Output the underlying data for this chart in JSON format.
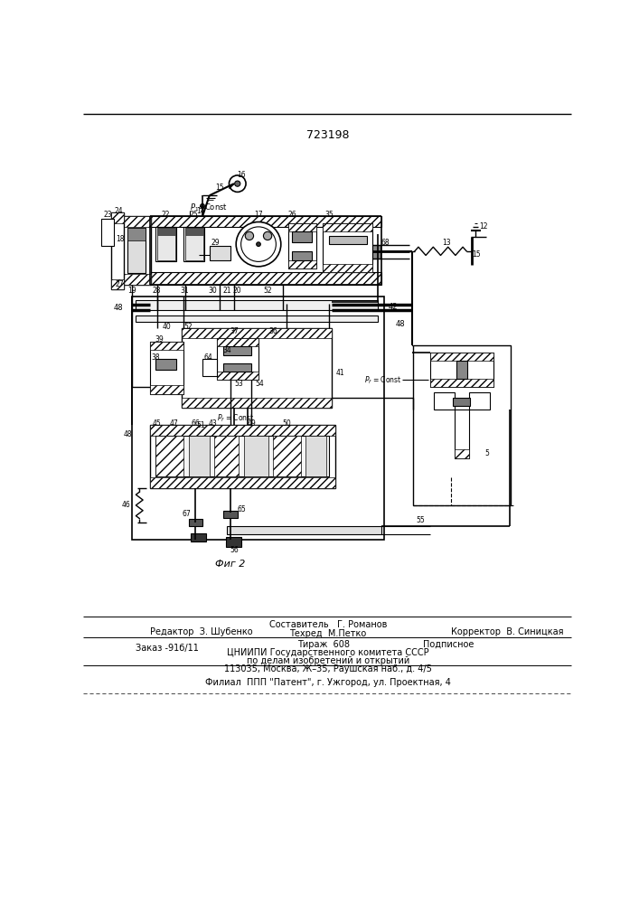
{
  "patent_number": "723198",
  "fig_label": "Фиг 2",
  "background_color": "#ffffff",
  "editor_line": "Редактор  З. Шубенко",
  "composer_line1": "Составитель   Г. Романов",
  "composer_line2": "Техред  М.Петко",
  "corrector_line": "Корректор  В. Синицкая",
  "order_line": "Заказ -91б/11",
  "print_line1": "Тираж  608",
  "print_line1b": "Подписное",
  "print_line2": "ЦНИИПИ Государственного комитета СССР",
  "print_line3": "по делам изобретений и открытий",
  "print_line4": "113035, Москва, Ж–35, Раушская наб., д. 4/5",
  "branch_line": "Филиал  ППП \"Патент\", г. Ужгород, ул. Проектная, 4"
}
